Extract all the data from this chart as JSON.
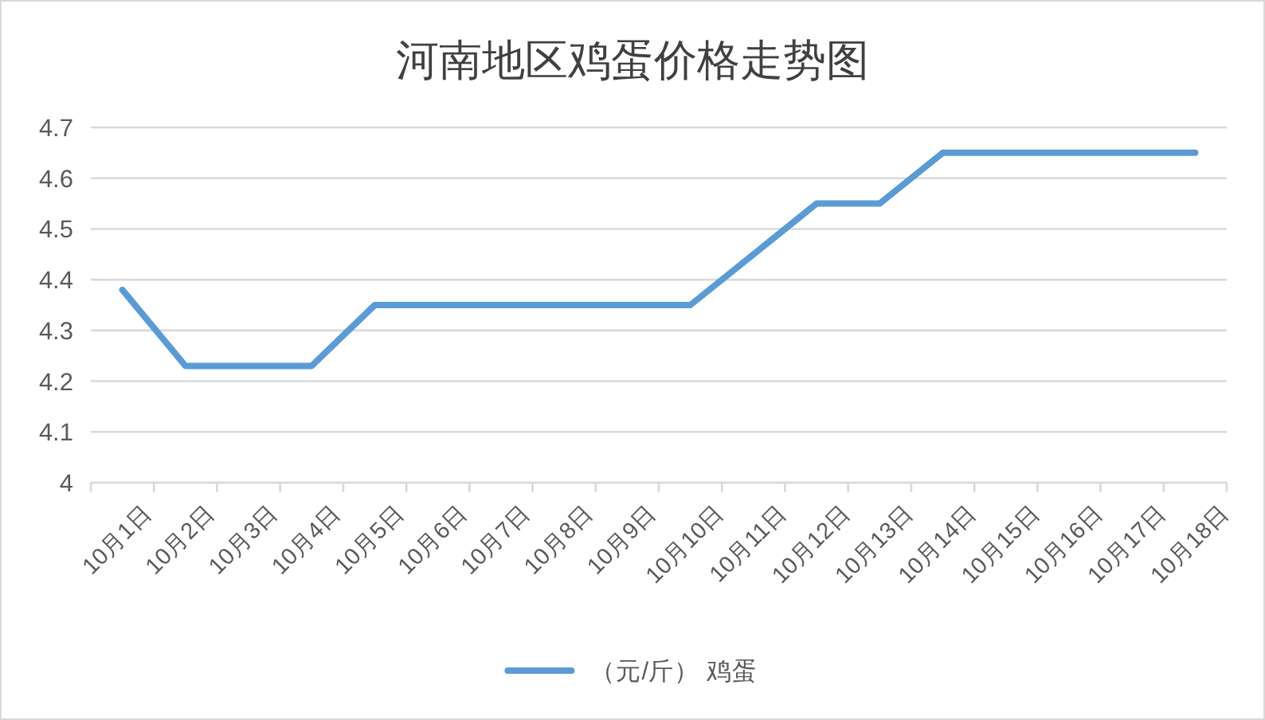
{
  "chart_data": {
    "type": "line",
    "title": "河南地区鸡蛋价格走势图",
    "categories": [
      "10月1日",
      "10月2日",
      "10月3日",
      "10月4日",
      "10月5日",
      "10月6日",
      "10月7日",
      "10月8日",
      "10月9日",
      "10月10日",
      "10月11日",
      "10月12日",
      "10月13日",
      "10月14日",
      "10月15日",
      "10月16日",
      "10月17日",
      "10月18日"
    ],
    "series": [
      {
        "name": "（元/斤） 鸡蛋",
        "color": "#5b9bd5",
        "values": [
          4.38,
          4.23,
          4.23,
          4.23,
          4.35,
          4.35,
          4.35,
          4.35,
          4.35,
          4.35,
          4.45,
          4.55,
          4.55,
          4.65,
          4.65,
          4.65,
          4.65,
          4.65
        ]
      }
    ],
    "ylim": [
      4,
      4.7
    ],
    "yticks": [
      4,
      4.1,
      4.2,
      4.3,
      4.4,
      4.5,
      4.6,
      4.7
    ],
    "grid": "y",
    "legend": "bottom"
  }
}
